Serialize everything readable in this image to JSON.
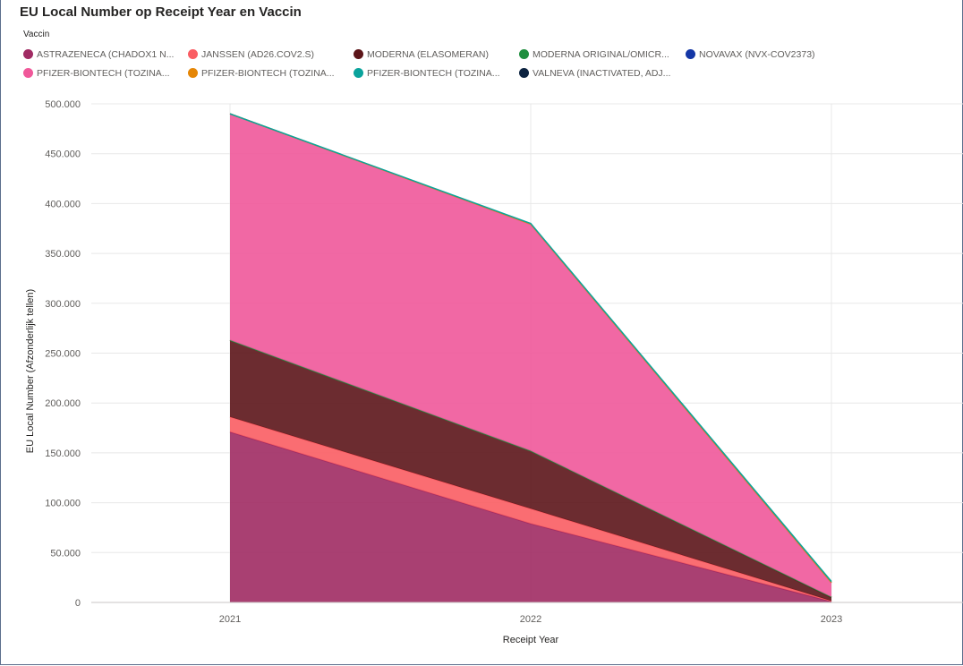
{
  "title": "EU Local Number op Receipt Year en Vaccin",
  "legend_title": "Vaccin",
  "legend_rows": [
    [
      {
        "label": "ASTRAZENECA (CHADOX1 N...",
        "color": "#a02b63"
      },
      {
        "label": "JANSSEN (AD26.COV2.S)",
        "color": "#fa5d63"
      },
      {
        "label": "MODERNA (ELASOMERAN)",
        "color": "#5c1519"
      },
      {
        "label": "MODERNA ORIGINAL/OMICR...",
        "color": "#1e8e3e"
      },
      {
        "label": "NOVAVAX (NVX-COV2373)",
        "color": "#1437a6"
      }
    ],
    [
      {
        "label": "PFIZER-BIONTECH (TOZINA...",
        "color": "#f0589a"
      },
      {
        "label": "PFIZER-BIONTECH (TOZINA...",
        "color": "#e58606"
      },
      {
        "label": "PFIZER-BIONTECH (TOZINA...",
        "color": "#0aa39c"
      },
      {
        "label": "VALNEVA (INACTIVATED, ADJ...",
        "color": "#0c2340"
      }
    ]
  ],
  "chart_data": {
    "type": "area",
    "stacked": true,
    "title": "EU Local Number op Receipt Year en Vaccin",
    "xlabel": "Receipt Year",
    "ylabel": "EU Local Number (Afzonderlijk tellen)",
    "categories": [
      "2021",
      "2022",
      "2023"
    ],
    "ylim": [
      0,
      500000
    ],
    "yticks": [
      "0",
      "50.000",
      "100.000",
      "150.000",
      "200.000",
      "250.000",
      "300.000",
      "350.000",
      "400.000",
      "450.000",
      "500.000"
    ],
    "grid": true,
    "legend_position": "top-left",
    "series": [
      {
        "name": "ASTRAZENECA (CHADOX1 N...",
        "color": "#a02b63",
        "values": [
          171000,
          79000,
          1000
        ]
      },
      {
        "name": "JANSSEN (AD26.COV2.S)",
        "color": "#fa5d63",
        "values": [
          15000,
          15000,
          500
        ]
      },
      {
        "name": "MODERNA (ELASOMERAN)",
        "color": "#5c1519",
        "values": [
          77000,
          58000,
          3500
        ]
      },
      {
        "name": "MODERNA ORIGINAL/OMICR...",
        "color": "#1e8e3e",
        "values": [
          0,
          0,
          500
        ]
      },
      {
        "name": "NOVAVAX (NVX-COV2373)",
        "color": "#1437a6",
        "values": [
          0,
          0,
          0
        ]
      },
      {
        "name": "PFIZER-BIONTECH (TOZINA...",
        "color": "#f0589a",
        "values": [
          227000,
          227000,
          14000
        ]
      },
      {
        "name": "PFIZER-BIONTECH (TOZINA...",
        "color": "#e58606",
        "values": [
          0,
          500,
          500
        ]
      },
      {
        "name": "PFIZER-BIONTECH (TOZINA...",
        "color": "#0aa39c",
        "values": [
          0,
          500,
          1000
        ]
      },
      {
        "name": "VALNEVA (INACTIVATED, ADJ...",
        "color": "#0c2340",
        "values": [
          0,
          0,
          0
        ]
      }
    ]
  }
}
